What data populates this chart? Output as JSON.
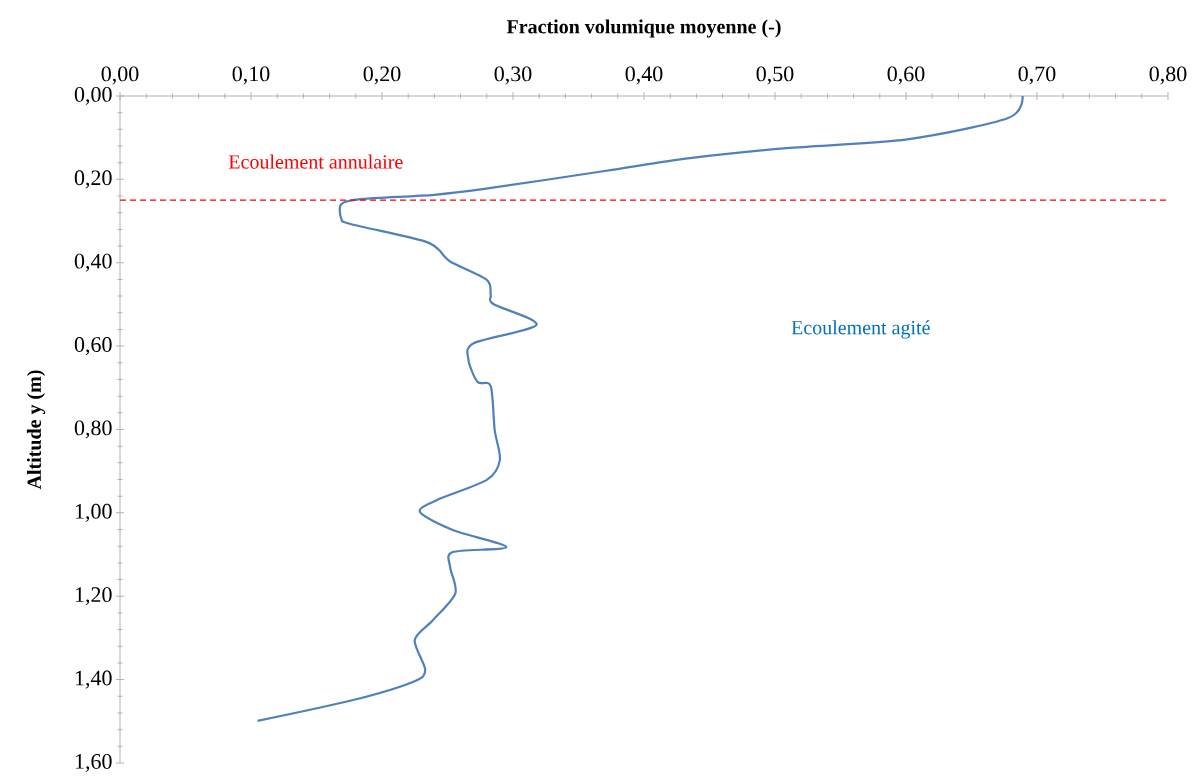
{
  "chart_data": {
    "type": "line",
    "xlabel": "Fraction volumique moyenne (-)",
    "ylabel": "Altitude y (m)",
    "xlim": [
      0,
      0.8
    ],
    "ylim": [
      1.6,
      0
    ],
    "xticks": [
      {
        "value": 0,
        "label": "0,00"
      },
      {
        "value": 0.1,
        "label": "0,10"
      },
      {
        "value": 0.2,
        "label": "0,20"
      },
      {
        "value": 0.3,
        "label": "0,30"
      },
      {
        "value": 0.4,
        "label": "0,40"
      },
      {
        "value": 0.5,
        "label": "0,50"
      },
      {
        "value": 0.6,
        "label": "0,60"
      },
      {
        "value": 0.7,
        "label": "0,70"
      },
      {
        "value": 0.8,
        "label": "0,80"
      }
    ],
    "yticks": [
      {
        "value": 0,
        "label": "0,00"
      },
      {
        "value": 0.2,
        "label": "0,20"
      },
      {
        "value": 0.4,
        "label": "0,40"
      },
      {
        "value": 0.6,
        "label": "0,60"
      },
      {
        "value": 0.8,
        "label": "0,80"
      },
      {
        "value": 1.0,
        "label": "1,00"
      },
      {
        "value": 1.2,
        "label": "1,20"
      },
      {
        "value": 1.4,
        "label": "1,40"
      },
      {
        "value": 1.6,
        "label": "1,60"
      }
    ],
    "grid": false,
    "marker": "none",
    "line_style": "solid",
    "series": [
      {
        "color": "#4f81bd",
        "x": [
          0.689,
          0.678,
          0.601,
          0.509,
          0.435,
          0.37,
          0.278,
          0.24,
          0.185,
          0.169,
          0.169,
          0.176,
          0.231,
          0.243,
          0.252,
          0.28,
          0.283,
          0.285,
          0.318,
          0.27,
          0.266,
          0.273,
          0.283,
          0.286,
          0.29,
          0.28,
          0.242,
          0.229,
          0.254,
          0.295,
          0.254,
          0.252,
          0.256,
          0.239,
          0.225,
          0.233,
          0.224,
          0.178,
          0.105
        ],
        "values": [
          0.0,
          0.053,
          0.104,
          0.125,
          0.149,
          0.18,
          0.223,
          0.237,
          0.247,
          0.259,
          0.295,
          0.307,
          0.347,
          0.368,
          0.397,
          0.441,
          0.477,
          0.499,
          0.549,
          0.593,
          0.633,
          0.686,
          0.696,
          0.801,
          0.873,
          0.921,
          0.969,
          0.998,
          1.041,
          1.082,
          1.094,
          1.13,
          1.193,
          1.257,
          1.305,
          1.377,
          1.405,
          1.449,
          1.499
        ]
      }
    ],
    "ref_lines": [
      {
        "axis": "y",
        "value": 0.25,
        "label": "Ecoulement annulaire",
        "color": "#ff0000",
        "line_style": "dashed"
      }
    ],
    "annotations": [
      "Ecoulement agité"
    ]
  }
}
